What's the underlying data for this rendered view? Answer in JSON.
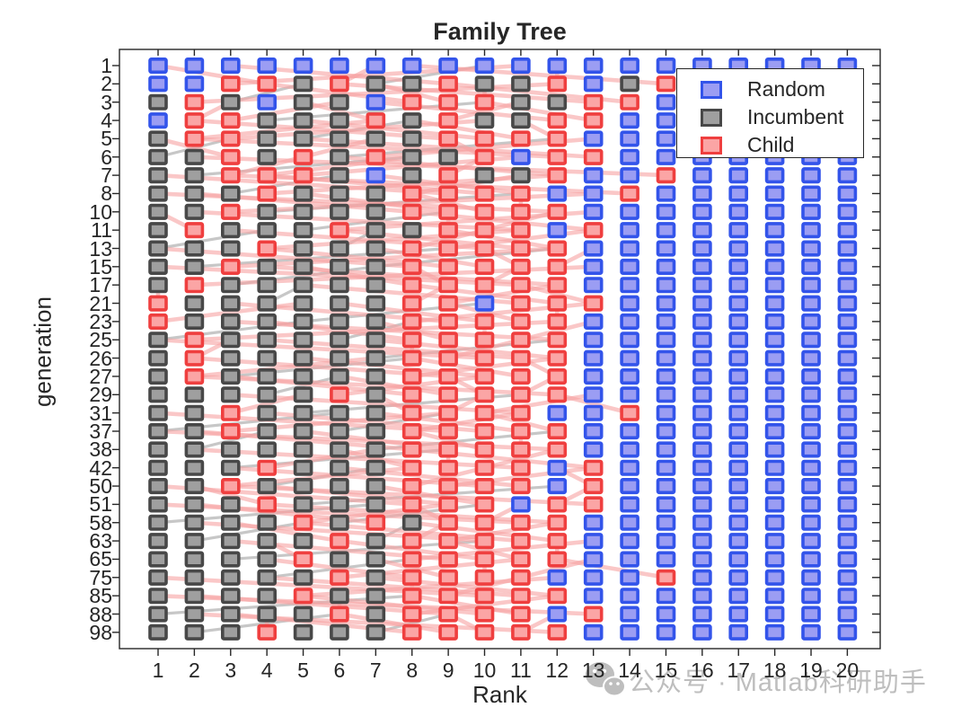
{
  "title": "Family Tree",
  "axes": {
    "xlabel": "Rank",
    "ylabel": "generation"
  },
  "legend": {
    "position": "top-right",
    "items": [
      {
        "code": "R",
        "label": "Random"
      },
      {
        "code": "I",
        "label": "Incumbent"
      },
      {
        "code": "C",
        "label": "Child"
      }
    ]
  },
  "watermark": {
    "icon": "wechat-icon",
    "text": "公众号 · Matlab科研助手"
  },
  "colors": {
    "marker": {
      "R": {
        "fill": "#9b9df3",
        "stroke": "#3354ea"
      },
      "I": {
        "fill": "#9f9f9f",
        "stroke": "#484848"
      },
      "C": {
        "fill": "#fba5a5",
        "stroke": "#ef3f3f"
      }
    },
    "link_child": "#f7a2a2",
    "link_incumbent": "#8f8f8f",
    "axis": "#262626",
    "watermark": "#b6b6b6"
  },
  "chart_data": {
    "type": "scatter",
    "title": "Family Tree",
    "xlabel": "Rank",
    "ylabel": "generation",
    "marker": "square",
    "grid_lines": "off",
    "legend_position": "top-right inside",
    "x_ticks": [
      1,
      2,
      3,
      4,
      5,
      6,
      7,
      8,
      9,
      10,
      11,
      12,
      13,
      14,
      15,
      16,
      17,
      18,
      19,
      20
    ],
    "y_ticks": [
      1,
      2,
      3,
      4,
      5,
      6,
      7,
      8,
      10,
      11,
      13,
      15,
      17,
      21,
      23,
      25,
      26,
      27,
      29,
      31,
      37,
      38,
      42,
      50,
      51,
      58,
      63,
      65,
      75,
      85,
      88,
      98
    ],
    "code_map": {
      "R": "Random",
      "I": "Incumbent",
      "C": "Child"
    },
    "rows": [
      {
        "gen": 1,
        "cells": "RRRRRRRRRRRRRRRRRRRR"
      },
      {
        "gen": 2,
        "cells": "RRCCICIICIICRICRRRRR"
      },
      {
        "gen": 3,
        "cells": "ICIRIIRCCCIICCRRRRRR"
      },
      {
        "gen": 4,
        "cells": "RCCIIICICIICCRRRRRRR"
      },
      {
        "gen": 5,
        "cells": "ICCIIIIICCCCRRRRRRRR"
      },
      {
        "gen": 6,
        "cells": "IICICICIICRCCRRRRRRR"
      },
      {
        "gen": 7,
        "cells": "IICCCIRICIICRRCRRRRR"
      },
      {
        "gen": 8,
        "cells": "IIICIIICCCCRRCRRRRRR"
      },
      {
        "gen": 10,
        "cells": "IICIIIICCCCCRRRRRRRR"
      },
      {
        "gen": 11,
        "cells": "ICIIICIICCCRCRRRRRRR"
      },
      {
        "gen": 13,
        "cells": "IIICIIICCCCCRRRRRRRR"
      },
      {
        "gen": 15,
        "cells": "IICIIIICCCCCRRRRRRRR"
      },
      {
        "gen": 17,
        "cells": "ICIIIIICCCCCRRRRRRRR"
      },
      {
        "gen": 21,
        "cells": "CIIIIIICCRCCCRRRRRRR"
      },
      {
        "gen": 23,
        "cells": "CIIIIIICCCCCRRRRRRRR"
      },
      {
        "gen": 25,
        "cells": "ICIIIIICCCCCRRRRRRRR"
      },
      {
        "gen": 26,
        "cells": "ICIIIIICCCCCRRRRRRRR"
      },
      {
        "gen": 27,
        "cells": "ICIIIIICCCCCRRRRRRRR"
      },
      {
        "gen": 29,
        "cells": "IIIIICICCCCCRRRRRRRR"
      },
      {
        "gen": 31,
        "cells": "IICIIIICCCCRRCRRRRRR"
      },
      {
        "gen": 37,
        "cells": "IICIIIICCCCCRRRRRRRR"
      },
      {
        "gen": 38,
        "cells": "IIIIIIICCCCCRRRRRRRR"
      },
      {
        "gen": 42,
        "cells": "IIICIIICCCCRCRRRRRRR"
      },
      {
        "gen": 50,
        "cells": "IICIIIICCCCRCRRRRRRR"
      },
      {
        "gen": 51,
        "cells": "IIICIIICCCRCCRRRRRRR"
      },
      {
        "gen": 58,
        "cells": "IIIICICICCCCRRRRRRRR"
      },
      {
        "gen": 63,
        "cells": "IIIIICICCCCCRRRRRRRR"
      },
      {
        "gen": 65,
        "cells": "IIIICIICCCCCRRRRRRRR"
      },
      {
        "gen": 75,
        "cells": "IIIIICICCCCRRRCRRRRR"
      },
      {
        "gen": 85,
        "cells": "IIIICIICCCCCRRRRRRRR"
      },
      {
        "gen": 88,
        "cells": "IIIIICICCCCRCRRRRRRR"
      },
      {
        "gen": 98,
        "cells": "IIICIIICCCCCRRRRRRRR"
      }
    ]
  }
}
